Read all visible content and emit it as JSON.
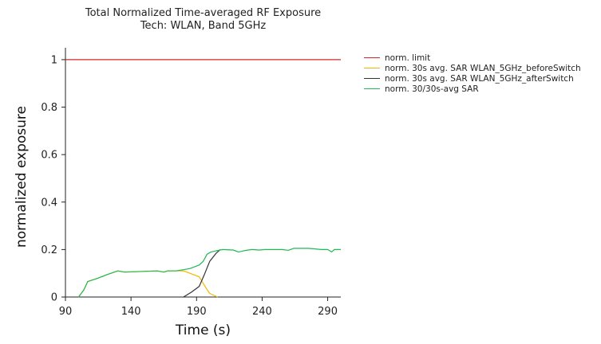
{
  "chart_data": {
    "type": "line",
    "title": "Total Normalized Time-averaged RF Exposure",
    "subtitle": "Tech: WLAN, Band 5GHz",
    "xlabel": "Time (s)",
    "ylabel": "normalized exposure",
    "xlim": [
      90,
      300
    ],
    "ylim": [
      0,
      1.05
    ],
    "xticks": [
      90,
      140,
      190,
      240,
      290
    ],
    "yticks": [
      0,
      0.2,
      0.4,
      0.6,
      0.8,
      1
    ],
    "ytick_labels": [
      "0",
      "0.2",
      "0.4",
      "0.6",
      "0.8",
      "1"
    ],
    "grid": false,
    "legend_position": "right",
    "series": [
      {
        "name": "norm. limit",
        "color": "#d62728",
        "x": [
          90,
          300
        ],
        "y": [
          1,
          1
        ]
      },
      {
        "name": "norm. 30s avg. SAR WLAN_5GHz_beforeSwitch",
        "color": "#f5b700",
        "x": [
          100,
          104,
          107,
          115,
          122,
          130,
          135,
          150,
          160,
          165,
          168,
          174,
          180,
          185,
          192,
          197,
          200,
          206
        ],
        "y": [
          0,
          0.03,
          0.065,
          0.08,
          0.095,
          0.11,
          0.105,
          0.108,
          0.11,
          0.105,
          0.11,
          0.11,
          0.11,
          0.1,
          0.085,
          0.04,
          0.015,
          0
        ]
      },
      {
        "name": "norm. 30s avg. SAR WLAN_5GHz_afterSwitch",
        "color": "#333333",
        "x": [
          180,
          186,
          192,
          196,
          200,
          205,
          208
        ],
        "y": [
          0,
          0.02,
          0.045,
          0.095,
          0.15,
          0.185,
          0.2
        ]
      },
      {
        "name": "norm. 30/30s-avg SAR",
        "color": "#1db954",
        "x": [
          100,
          104,
          107,
          115,
          122,
          130,
          135,
          150,
          160,
          165,
          168,
          174,
          180,
          185,
          192,
          195,
          198,
          201,
          205,
          210,
          218,
          222,
          226,
          232,
          238,
          242,
          250,
          255,
          260,
          264,
          268,
          275,
          280,
          285,
          290,
          293,
          295,
          300
        ],
        "y": [
          0,
          0.03,
          0.065,
          0.08,
          0.095,
          0.11,
          0.105,
          0.108,
          0.11,
          0.105,
          0.11,
          0.11,
          0.115,
          0.12,
          0.135,
          0.15,
          0.18,
          0.19,
          0.195,
          0.2,
          0.198,
          0.19,
          0.195,
          0.2,
          0.198,
          0.2,
          0.2,
          0.2,
          0.197,
          0.205,
          0.205,
          0.205,
          0.203,
          0.2,
          0.2,
          0.19,
          0.2,
          0.2
        ]
      }
    ]
  }
}
